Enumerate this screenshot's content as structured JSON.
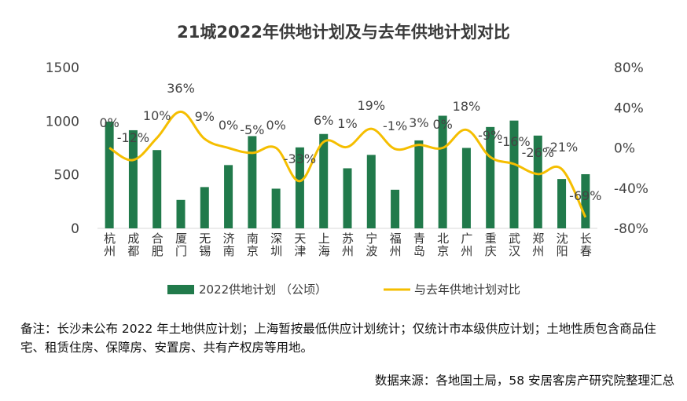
{
  "chart_data": {
    "type": "bar+line",
    "title": "21城2022年供地计划及与去年供地计划对比",
    "categories": [
      "杭州",
      "成都",
      "合肥",
      "厦门",
      "无锡",
      "济南",
      "南京",
      "深圳",
      "天津",
      "上海",
      "苏州",
      "宁波",
      "福州",
      "青岛",
      "北京",
      "广州",
      "重庆",
      "武汉",
      "郑州",
      "沈阳",
      "长春"
    ],
    "series": [
      {
        "name": "2022供地计划 （公顷）",
        "type": "bar",
        "axis": "left",
        "color": "#217A4B",
        "values": [
          995,
          915,
          730,
          265,
          385,
          590,
          860,
          370,
          755,
          880,
          560,
          685,
          360,
          820,
          1050,
          750,
          945,
          1005,
          865,
          460,
          505
        ]
      },
      {
        "name": "与去年供地计划对比",
        "type": "line",
        "axis": "right",
        "color": "#F5BE00",
        "values": [
          0,
          -12,
          10,
          36,
          9,
          0,
          -5,
          0,
          -33,
          6,
          1,
          19,
          -1,
          3,
          0,
          18,
          -9,
          -16,
          -26,
          -21,
          -69
        ],
        "labels": [
          "0%",
          "-12%",
          "10%",
          "36%",
          "9%",
          "0%",
          "-5%",
          "0%",
          "-33%",
          "6%",
          "1%",
          "19%",
          "-1%",
          "3%",
          "0%",
          "18%",
          "-9%",
          "-16%",
          "-26%",
          "-21%",
          "-69%"
        ]
      }
    ],
    "y_left": {
      "range": [
        0,
        1500
      ],
      "ticks": [
        "0",
        "500",
        "1000",
        "1500"
      ]
    },
    "y_right": {
      "range": [
        -80,
        80
      ],
      "ticks": [
        "-80%",
        "-40%",
        "0%",
        "40%",
        "80%"
      ]
    },
    "legend_position": "bottom",
    "grid": false
  },
  "note": "备注：长沙未公布 2022 年土地供应计划；上海暂按最低供应计划统计；仅统计市本级供应计划；土地性质包含商品住宅、租赁住房、保障房、安置房、共有产权房等用地。",
  "source": "数据来源：各地国土局，58 安居客房产研究院整理汇总"
}
